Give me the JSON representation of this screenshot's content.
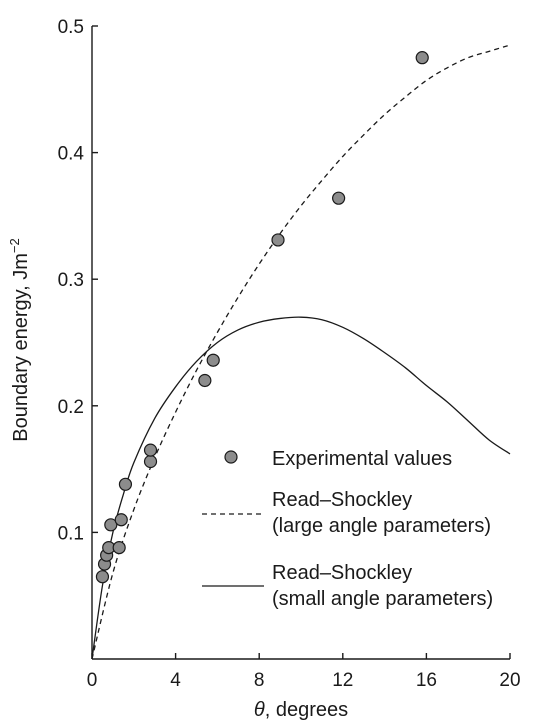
{
  "chart_data": {
    "type": "scatter",
    "xlabel_var": "θ",
    "xlabel_rest": ", degrees",
    "ylabel_main": "Boundary energy, Jm",
    "ylabel_sup": "−2",
    "xlim": [
      0,
      20
    ],
    "ylim": [
      0,
      0.5
    ],
    "x_ticks": [
      0,
      4,
      8,
      12,
      16,
      20
    ],
    "x_tick_labels": [
      "0",
      "4",
      "8",
      "12",
      "16",
      "20"
    ],
    "y_ticks": [
      0.1,
      0.2,
      0.3,
      0.4,
      0.5
    ],
    "y_tick_labels": [
      "0.1",
      "0.2",
      "0.3",
      "0.4",
      "0.5"
    ],
    "grid": false,
    "legend_position": "bottom-right",
    "series": [
      {
        "name": "Experimental values",
        "kind": "markers",
        "marker_color": "#8c8c8c",
        "points": [
          {
            "x": 0.5,
            "y": 0.065
          },
          {
            "x": 0.6,
            "y": 0.075
          },
          {
            "x": 0.7,
            "y": 0.082
          },
          {
            "x": 0.8,
            "y": 0.088
          },
          {
            "x": 0.9,
            "y": 0.106
          },
          {
            "x": 1.3,
            "y": 0.088
          },
          {
            "x": 1.4,
            "y": 0.11
          },
          {
            "x": 1.6,
            "y": 0.138
          },
          {
            "x": 2.8,
            "y": 0.156
          },
          {
            "x": 2.8,
            "y": 0.165
          },
          {
            "x": 5.4,
            "y": 0.22
          },
          {
            "x": 5.8,
            "y": 0.236
          },
          {
            "x": 8.9,
            "y": 0.331
          },
          {
            "x": 11.8,
            "y": 0.364
          },
          {
            "x": 15.8,
            "y": 0.475
          }
        ]
      },
      {
        "name_line1": "Read–Shockley",
        "name_line2": "(large angle parameters)",
        "kind": "line",
        "dash": "dashed",
        "points": [
          {
            "x": 0,
            "y": 0.0
          },
          {
            "x": 1,
            "y": 0.068
          },
          {
            "x": 2,
            "y": 0.118
          },
          {
            "x": 3,
            "y": 0.159
          },
          {
            "x": 4,
            "y": 0.195
          },
          {
            "x": 5,
            "y": 0.228
          },
          {
            "x": 6,
            "y": 0.258
          },
          {
            "x": 7,
            "y": 0.286
          },
          {
            "x": 8,
            "y": 0.312
          },
          {
            "x": 9,
            "y": 0.336
          },
          {
            "x": 10,
            "y": 0.358
          },
          {
            "x": 11,
            "y": 0.378
          },
          {
            "x": 12,
            "y": 0.397
          },
          {
            "x": 13,
            "y": 0.414
          },
          {
            "x": 14,
            "y": 0.43
          },
          {
            "x": 15,
            "y": 0.444
          },
          {
            "x": 16,
            "y": 0.457
          },
          {
            "x": 17,
            "y": 0.467
          },
          {
            "x": 18,
            "y": 0.475
          },
          {
            "x": 19,
            "y": 0.48
          },
          {
            "x": 20,
            "y": 0.485
          }
        ]
      },
      {
        "name_line1": "Read–Shockley",
        "name_line2": "(small angle parameters)",
        "kind": "line",
        "dash": "solid",
        "points": [
          {
            "x": 0,
            "y": 0.0
          },
          {
            "x": 0.5,
            "y": 0.058
          },
          {
            "x": 1,
            "y": 0.1
          },
          {
            "x": 1.5,
            "y": 0.13
          },
          {
            "x": 2,
            "y": 0.155
          },
          {
            "x": 3,
            "y": 0.19
          },
          {
            "x": 4,
            "y": 0.215
          },
          {
            "x": 5,
            "y": 0.235
          },
          {
            "x": 6,
            "y": 0.25
          },
          {
            "x": 7,
            "y": 0.26
          },
          {
            "x": 8,
            "y": 0.266
          },
          {
            "x": 9,
            "y": 0.269
          },
          {
            "x": 10,
            "y": 0.27
          },
          {
            "x": 11,
            "y": 0.268
          },
          {
            "x": 12,
            "y": 0.262
          },
          {
            "x": 13,
            "y": 0.253
          },
          {
            "x": 14,
            "y": 0.242
          },
          {
            "x": 15,
            "y": 0.23
          },
          {
            "x": 16,
            "y": 0.216
          },
          {
            "x": 17,
            "y": 0.203
          },
          {
            "x": 18,
            "y": 0.188
          },
          {
            "x": 19,
            "y": 0.173
          },
          {
            "x": 20,
            "y": 0.162
          }
        ]
      }
    ]
  }
}
